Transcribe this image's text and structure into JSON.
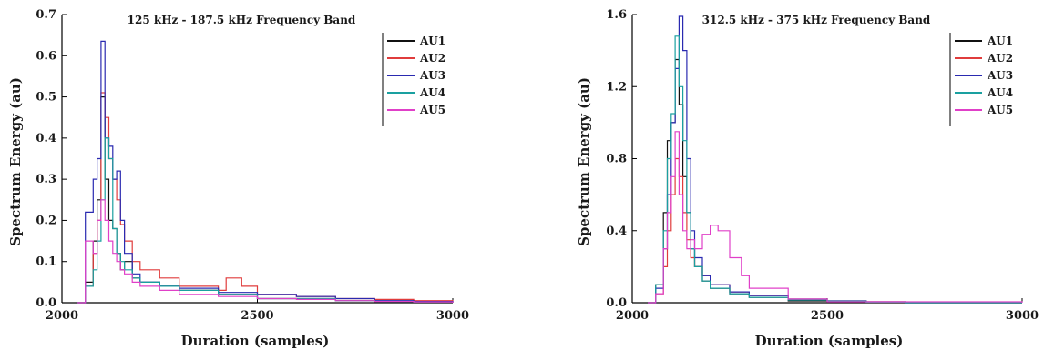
{
  "chart_data": [
    {
      "type": "line",
      "title": "125 kHz - 187.5 kHz Frequency Band",
      "xlabel": "Duration (samples)",
      "ylabel": "Spectrum Energy (au)",
      "xlim": [
        2000,
        3000
      ],
      "ylim": [
        0,
        0.7
      ],
      "xticks": [
        2000,
        2500,
        3000
      ],
      "xtick_labels": [
        "2000",
        "2500",
        "3000"
      ],
      "yticks": [
        0.0,
        0.1,
        0.2,
        0.3,
        0.4,
        0.5,
        0.6,
        0.7
      ],
      "ytick_labels": [
        "0.0",
        "0.1",
        "0.2",
        "0.3",
        "0.4",
        "0.5",
        "0.6",
        "0.7"
      ],
      "grid": false,
      "legend_position": "top-right",
      "series": [
        {
          "name": "AU1",
          "color": "#111111",
          "x": [
            2040,
            2060,
            2080,
            2090,
            2100,
            2110,
            2120,
            2130,
            2140,
            2150,
            2160,
            2180,
            2200,
            2250,
            2300,
            2400,
            2500,
            2600,
            2700,
            2800,
            2900,
            3000
          ],
          "y": [
            0.0,
            0.05,
            0.15,
            0.25,
            0.5,
            0.3,
            0.2,
            0.18,
            0.12,
            0.08,
            0.1,
            0.06,
            0.05,
            0.04,
            0.03,
            0.02,
            0.01,
            0.01,
            0.005,
            0.003,
            0.002,
            0.0
          ]
        },
        {
          "name": "AU2",
          "color": "#e03c3c",
          "x": [
            2040,
            2060,
            2080,
            2090,
            2100,
            2110,
            2120,
            2130,
            2140,
            2150,
            2160,
            2180,
            2200,
            2250,
            2300,
            2400,
            2420,
            2460,
            2500,
            2600,
            2700,
            2800,
            2900,
            3000
          ],
          "y": [
            0.0,
            0.04,
            0.12,
            0.2,
            0.51,
            0.45,
            0.35,
            0.3,
            0.25,
            0.19,
            0.15,
            0.1,
            0.08,
            0.06,
            0.04,
            0.03,
            0.06,
            0.04,
            0.02,
            0.015,
            0.01,
            0.008,
            0.005,
            0.0
          ]
        },
        {
          "name": "AU3",
          "color": "#2a2ab0",
          "x": [
            2040,
            2060,
            2080,
            2090,
            2100,
            2110,
            2120,
            2130,
            2140,
            2150,
            2160,
            2180,
            2200,
            2250,
            2300,
            2400,
            2500,
            2600,
            2700,
            2800,
            2900,
            3000
          ],
          "y": [
            0.0,
            0.22,
            0.3,
            0.35,
            0.635,
            0.4,
            0.38,
            0.3,
            0.32,
            0.2,
            0.12,
            0.07,
            0.05,
            0.04,
            0.035,
            0.025,
            0.02,
            0.015,
            0.01,
            0.005,
            0.003,
            0.0
          ]
        },
        {
          "name": "AU4",
          "color": "#1aa0a0",
          "x": [
            2040,
            2060,
            2080,
            2090,
            2100,
            2110,
            2120,
            2130,
            2140,
            2150,
            2160,
            2180,
            2200,
            2250,
            2300,
            2400,
            2500,
            2600,
            2700,
            2800,
            2900,
            3000
          ],
          "y": [
            0.0,
            0.04,
            0.08,
            0.15,
            0.25,
            0.4,
            0.35,
            0.18,
            0.12,
            0.1,
            0.08,
            0.06,
            0.05,
            0.04,
            0.03,
            0.02,
            0.01,
            0.01,
            0.005,
            0.003,
            0.002,
            0.0
          ]
        },
        {
          "name": "AU5",
          "color": "#e040c8",
          "x": [
            2040,
            2060,
            2080,
            2090,
            2100,
            2110,
            2120,
            2130,
            2140,
            2150,
            2160,
            2180,
            2200,
            2250,
            2300,
            2400,
            2500,
            2600,
            2700,
            2800,
            2900,
            3000
          ],
          "y": [
            0.0,
            0.15,
            0.12,
            0.2,
            0.25,
            0.2,
            0.15,
            0.12,
            0.1,
            0.08,
            0.07,
            0.05,
            0.04,
            0.03,
            0.02,
            0.015,
            0.01,
            0.008,
            0.005,
            0.003,
            0.002,
            0.0
          ]
        }
      ]
    },
    {
      "type": "line",
      "title": "312.5 kHz - 375 kHz Frequency Band",
      "xlabel": "Duration (samples)",
      "ylabel": "Spectrum Energy (au)",
      "xlim": [
        2000,
        3000
      ],
      "ylim": [
        0,
        1.6
      ],
      "xticks": [
        2000,
        2500,
        3000
      ],
      "xtick_labels": [
        "2000",
        "2500",
        "3000"
      ],
      "yticks": [
        0.0,
        0.4,
        0.8,
        1.2,
        1.6
      ],
      "ytick_labels": [
        "0.0",
        "0.4",
        "0.8",
        "1.2",
        "1.6"
      ],
      "grid": false,
      "legend_position": "top-right",
      "series": [
        {
          "name": "AU1",
          "color": "#111111",
          "x": [
            2040,
            2060,
            2080,
            2090,
            2100,
            2110,
            2120,
            2130,
            2140,
            2150,
            2160,
            2180,
            2200,
            2250,
            2300,
            2400,
            2500,
            2600,
            2700,
            3000
          ],
          "y": [
            0.0,
            0.1,
            0.5,
            0.9,
            1.0,
            1.35,
            1.1,
            0.7,
            0.5,
            0.3,
            0.2,
            0.12,
            0.08,
            0.05,
            0.03,
            0.01,
            0.005,
            0.002,
            0.0,
            0.0
          ]
        },
        {
          "name": "AU2",
          "color": "#e03c3c",
          "x": [
            2040,
            2060,
            2080,
            2090,
            2100,
            2110,
            2120,
            2130,
            2140,
            2150,
            2160,
            2180,
            2200,
            2250,
            2300,
            2400,
            2500,
            2600,
            2700,
            3000
          ],
          "y": [
            0.0,
            0.05,
            0.2,
            0.4,
            0.6,
            0.8,
            0.7,
            0.5,
            0.35,
            0.25,
            0.2,
            0.15,
            0.1,
            0.06,
            0.04,
            0.02,
            0.01,
            0.005,
            0.0,
            0.0
          ]
        },
        {
          "name": "AU3",
          "color": "#2a2ab0",
          "x": [
            2040,
            2060,
            2080,
            2090,
            2100,
            2110,
            2120,
            2130,
            2140,
            2150,
            2160,
            2180,
            2200,
            2250,
            2300,
            2400,
            2500,
            2600,
            2700,
            3000
          ],
          "y": [
            0.0,
            0.08,
            0.3,
            0.6,
            1.0,
            1.3,
            1.59,
            1.4,
            0.8,
            0.4,
            0.25,
            0.15,
            0.1,
            0.06,
            0.04,
            0.02,
            0.01,
            0.005,
            0.0,
            0.0
          ]
        },
        {
          "name": "AU4",
          "color": "#1aa0a0",
          "x": [
            2040,
            2060,
            2080,
            2090,
            2100,
            2110,
            2120,
            2130,
            2140,
            2150,
            2160,
            2180,
            2200,
            2250,
            2300,
            2400,
            2500,
            2600,
            2700,
            3000
          ],
          "y": [
            0.0,
            0.1,
            0.4,
            0.8,
            1.05,
            1.48,
            1.2,
            0.9,
            0.5,
            0.3,
            0.2,
            0.12,
            0.08,
            0.05,
            0.03,
            0.015,
            0.008,
            0.003,
            0.0,
            0.0
          ]
        },
        {
          "name": "AU5",
          "color": "#e040c8",
          "x": [
            2040,
            2060,
            2080,
            2090,
            2100,
            2110,
            2120,
            2130,
            2140,
            2150,
            2160,
            2180,
            2200,
            2220,
            2250,
            2280,
            2300,
            2400,
            2500,
            3000
          ],
          "y": [
            0.0,
            0.05,
            0.3,
            0.5,
            0.7,
            0.95,
            0.6,
            0.4,
            0.3,
            0.35,
            0.3,
            0.38,
            0.43,
            0.4,
            0.25,
            0.15,
            0.08,
            0.02,
            0.005,
            0.0
          ]
        }
      ]
    }
  ]
}
